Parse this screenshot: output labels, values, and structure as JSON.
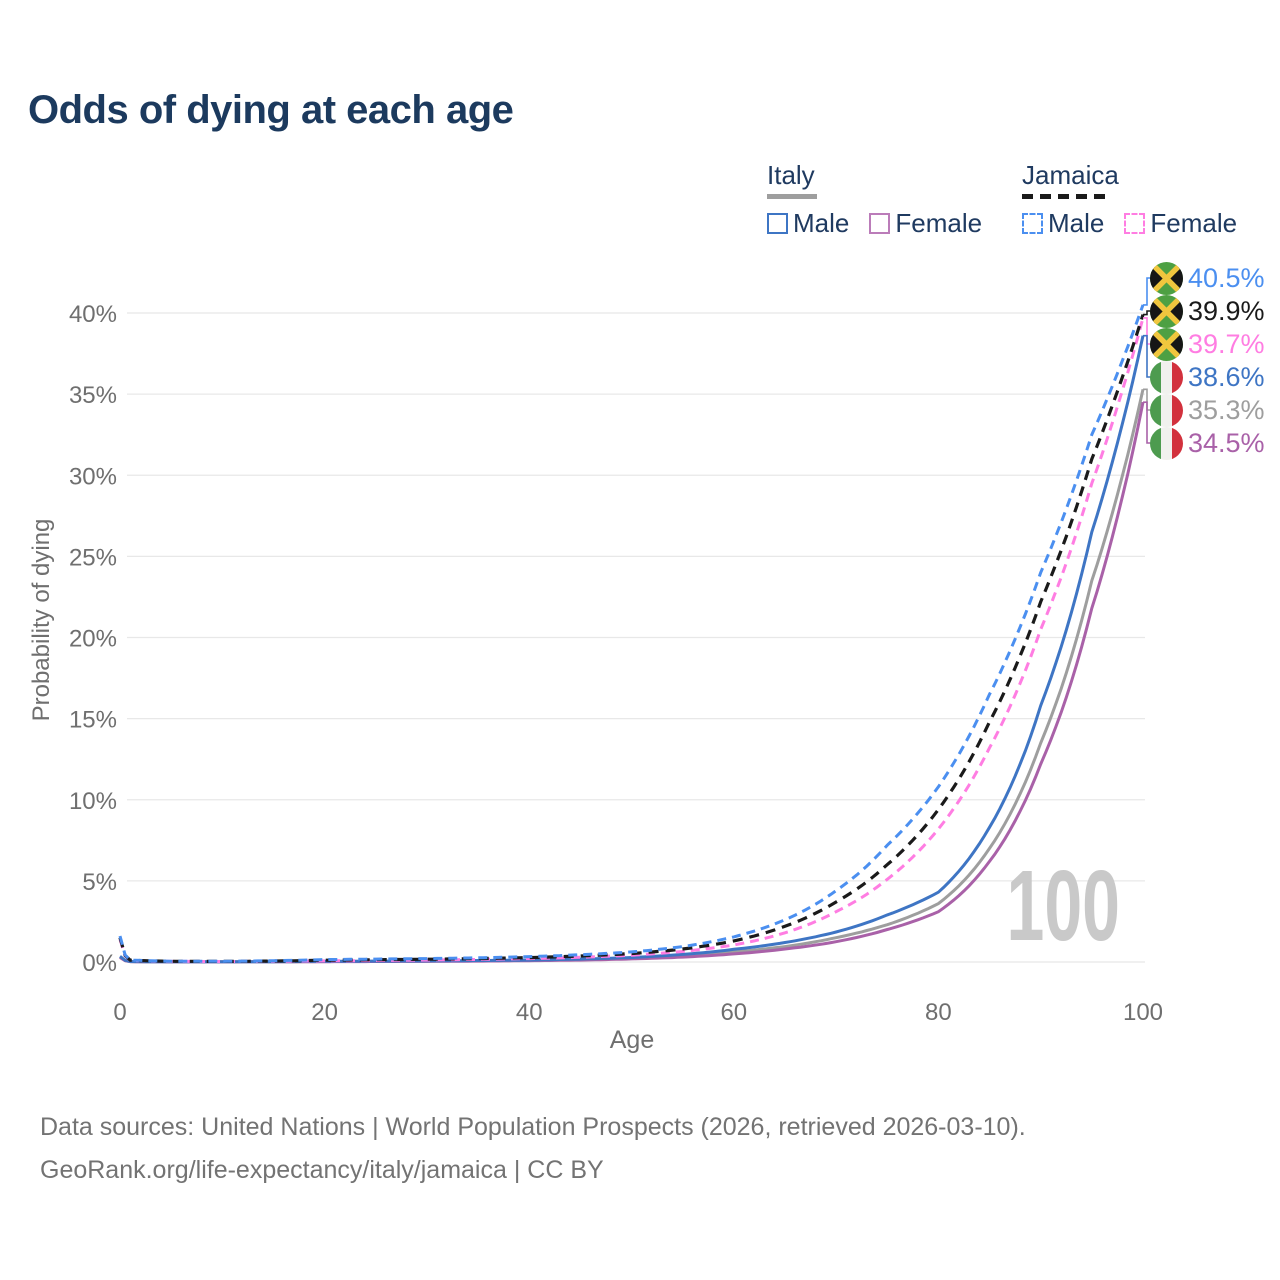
{
  "title": "Odds of dying at each age",
  "legend": {
    "italy": {
      "label": "Italy",
      "male_label": "Male",
      "female_label": "Female"
    },
    "jamaica": {
      "label": "Jamaica",
      "male_label": "Male",
      "female_label": "Female"
    }
  },
  "watermark": "100",
  "footer": {
    "line1": "Data sources: United Nations | World Population Prospects (2026, retrieved 2026-03-10).",
    "line2": "GeoRank.org/life-expectancy/italy/jamaica | CC BY"
  },
  "chart_data": {
    "type": "line",
    "title": "Odds of dying at each age",
    "xlabel": "Age",
    "ylabel": "Probability of dying",
    "xlim": [
      0,
      100
    ],
    "ylim": [
      0,
      43
    ],
    "x_ticks": [
      0,
      20,
      40,
      60,
      80,
      100
    ],
    "y_ticks": [
      0,
      5,
      10,
      15,
      20,
      25,
      30,
      35,
      40
    ],
    "y_tick_suffix": "%",
    "grid": "horizontal",
    "colors": {
      "italy_male": "#3e75c4",
      "italy_female": "#a961a8",
      "italy_total": "#9e9e9e",
      "jamaica_male": "#4b8ff0",
      "jamaica_female": "#ff7de2",
      "jamaica_total": "#1a1a1a",
      "gridline": "#e8e8e8",
      "axis_text": "#6f6f6f"
    },
    "series": [
      {
        "name": "Italy total",
        "country": "italy",
        "sex": "all",
        "color": "#9e9e9e",
        "line_style": "solid",
        "dasharray": "",
        "width": 3,
        "ages": [
          0,
          1,
          5,
          10,
          15,
          20,
          25,
          30,
          35,
          40,
          45,
          50,
          55,
          60,
          65,
          70,
          75,
          80,
          85,
          90,
          95,
          100
        ],
        "values": [
          0.3,
          0.025,
          0.01,
          0.01,
          0.015,
          0.03,
          0.04,
          0.05,
          0.07,
          0.1,
          0.15,
          0.23,
          0.38,
          0.62,
          0.95,
          1.5,
          2.3,
          3.6,
          7.0,
          13.5,
          23.5,
          35.3
        ]
      },
      {
        "name": "Italy female",
        "country": "italy",
        "sex": "female",
        "color": "#a961a8",
        "line_style": "solid",
        "dasharray": "",
        "width": 3,
        "ages": [
          0,
          1,
          5,
          10,
          15,
          20,
          25,
          30,
          35,
          40,
          45,
          50,
          55,
          60,
          65,
          70,
          75,
          80,
          85,
          90,
          95,
          100
        ],
        "values": [
          0.28,
          0.022,
          0.008,
          0.008,
          0.012,
          0.02,
          0.03,
          0.04,
          0.055,
          0.08,
          0.12,
          0.19,
          0.3,
          0.5,
          0.8,
          1.25,
          2.0,
          3.1,
          6.2,
          12.2,
          21.8,
          34.5
        ]
      },
      {
        "name": "Italy male",
        "country": "italy",
        "sex": "male",
        "color": "#3e75c4",
        "line_style": "solid",
        "dasharray": "",
        "width": 3,
        "ages": [
          0,
          1,
          5,
          10,
          15,
          20,
          25,
          30,
          35,
          40,
          45,
          50,
          55,
          60,
          65,
          70,
          75,
          80,
          85,
          90,
          95,
          100
        ],
        "values": [
          0.35,
          0.03,
          0.012,
          0.012,
          0.02,
          0.045,
          0.055,
          0.065,
          0.09,
          0.12,
          0.18,
          0.28,
          0.47,
          0.78,
          1.2,
          1.85,
          2.9,
          4.3,
          8.3,
          15.8,
          26.5,
          38.6
        ]
      },
      {
        "name": "Jamaica female",
        "country": "jamaica",
        "sex": "female",
        "color": "#ff7de2",
        "line_style": "dashed",
        "dasharray": "9 6",
        "width": 3,
        "ages": [
          0,
          1,
          5,
          10,
          15,
          20,
          25,
          30,
          35,
          40,
          45,
          50,
          55,
          60,
          65,
          70,
          75,
          80,
          85,
          90,
          95,
          100
        ],
        "values": [
          1.4,
          0.1,
          0.04,
          0.03,
          0.045,
          0.07,
          0.09,
          0.12,
          0.16,
          0.21,
          0.29,
          0.42,
          0.65,
          1.05,
          1.8,
          3.1,
          5.1,
          8.2,
          13.2,
          20.5,
          29.5,
          39.7
        ]
      },
      {
        "name": "Jamaica total",
        "country": "jamaica",
        "sex": "all",
        "color": "#1a1a1a",
        "line_style": "dashed",
        "dasharray": "10 7",
        "width": 3.2,
        "ages": [
          0,
          1,
          5,
          10,
          15,
          20,
          25,
          30,
          35,
          40,
          45,
          50,
          55,
          60,
          65,
          70,
          75,
          80,
          85,
          90,
          95,
          100
        ],
        "values": [
          1.5,
          0.11,
          0.045,
          0.035,
          0.06,
          0.11,
          0.14,
          0.17,
          0.21,
          0.27,
          0.37,
          0.52,
          0.8,
          1.3,
          2.2,
          3.7,
          6.0,
          9.4,
          14.8,
          22.2,
          31.0,
          39.9
        ]
      },
      {
        "name": "Jamaica male",
        "country": "jamaica",
        "sex": "male",
        "color": "#4b8ff0",
        "line_style": "dashed",
        "dasharray": "9 6",
        "width": 3,
        "ages": [
          0,
          1,
          5,
          10,
          15,
          20,
          25,
          30,
          35,
          40,
          45,
          50,
          55,
          60,
          65,
          70,
          75,
          80,
          85,
          90,
          95,
          100
        ],
        "values": [
          1.6,
          0.12,
          0.05,
          0.04,
          0.08,
          0.15,
          0.18,
          0.21,
          0.26,
          0.33,
          0.45,
          0.62,
          0.95,
          1.55,
          2.6,
          4.4,
          7.2,
          10.8,
          16.5,
          24.0,
          32.5,
          40.5
        ]
      }
    ],
    "end_labels": [
      {
        "text": "40.5%",
        "flag": "jamaica",
        "color": "#4b8ff0",
        "value": 40.5
      },
      {
        "text": "39.9%",
        "flag": "jamaica",
        "color": "#1a1a1a",
        "value": 39.9
      },
      {
        "text": "39.7%",
        "flag": "jamaica",
        "color": "#ff7de2",
        "value": 39.7
      },
      {
        "text": "38.6%",
        "flag": "italy",
        "color": "#3e75c4",
        "value": 38.6
      },
      {
        "text": "35.3%",
        "flag": "italy",
        "color": "#9e9e9e",
        "value": 35.3
      },
      {
        "text": "34.5%",
        "flag": "italy",
        "color": "#a961a8",
        "value": 34.5
      }
    ]
  }
}
